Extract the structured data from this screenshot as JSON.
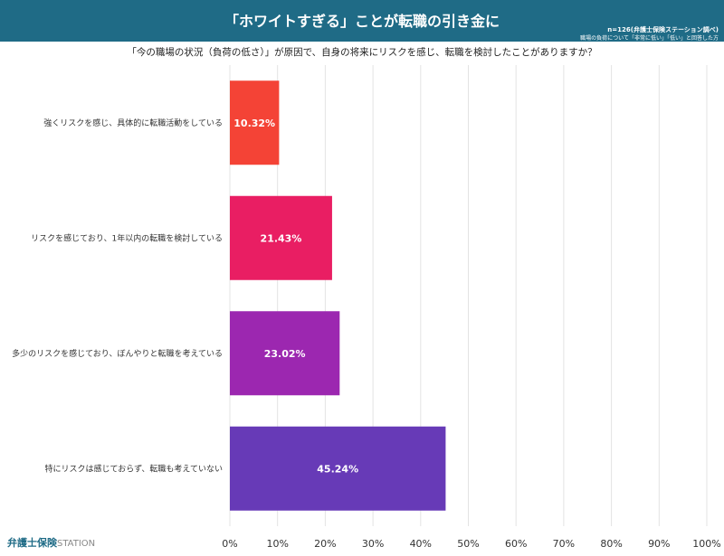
{
  "header": {
    "title": "「ホワイトすぎる」ことが転職の引き金に",
    "note": "n=126(弁護士保険ステーション調べ)",
    "note_sub": "職場の負荷について「非常に低い」「低い」と回答した方"
  },
  "logo": {
    "text": "弁護士保険",
    "suffix": "STATION"
  },
  "chart_data": {
    "type": "bar",
    "orientation": "horizontal",
    "title": "「今の職場の状況（負荷の低さ）」が原因で、自身の将来にリスクを感じ、転職を検討したことがありますか？",
    "categories": [
      "強くリスクを感じ、具体的に転職活動をしている",
      "リスクを感じており、1年以内の転職を検討している",
      "多少のリスクを感じており、ぼんやりと転職を考えている",
      "特にリスクは感じておらず、転職も考えていない"
    ],
    "values": [
      10.32,
      21.43,
      23.02,
      45.24
    ],
    "data_labels": [
      "10.32%",
      "21.43%",
      "23.02%",
      "45.24%"
    ],
    "colors": [
      "#f44336",
      "#e91e63",
      "#9c27b0",
      "#673ab7"
    ],
    "xlim": [
      0,
      100
    ],
    "xticks": [
      "0%",
      "10%",
      "20%",
      "30%",
      "40%",
      "50%",
      "60%",
      "70%",
      "80%",
      "90%",
      "100%"
    ],
    "grid": true
  }
}
